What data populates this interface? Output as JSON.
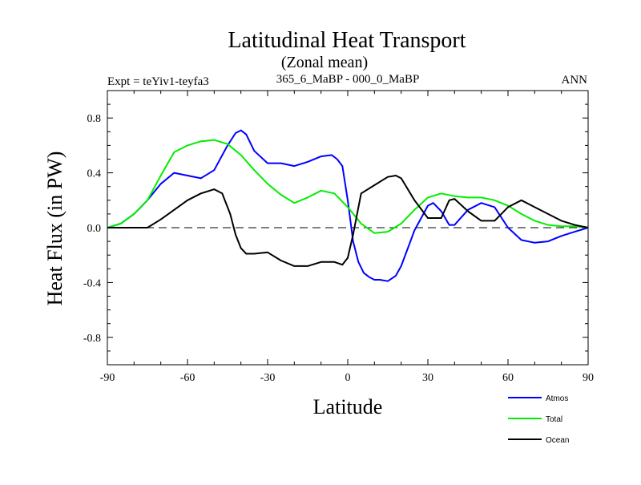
{
  "chart_data": {
    "type": "line",
    "title": "Latitudinal Heat Transport",
    "subtitle": "(Zonal mean)",
    "experiment": "Expt = teYiv1-teyfa3",
    "comparison": "365_6_MaBP - 000_0_MaBP",
    "season": "ANN",
    "xlabel": "Latitude",
    "ylabel": "Heat Flux (in PW)",
    "xlim": [
      -90,
      90
    ],
    "ylim": [
      -1.0,
      1.0
    ],
    "xticks": [
      -90,
      -60,
      -30,
      0,
      30,
      60,
      90
    ],
    "yticks": [
      -0.8,
      -0.4,
      0.0,
      0.4,
      0.8
    ],
    "ytick_labels": [
      "-0.8",
      "-0.4",
      "0.0",
      "0.4",
      "0.8"
    ],
    "zero_line": true,
    "series": [
      {
        "name": "Atmos",
        "color": "#0000ff",
        "x": [
          -90,
          -85,
          -80,
          -75,
          -70,
          -65,
          -60,
          -55,
          -50,
          -45,
          -42,
          -40,
          -38,
          -35,
          -30,
          -25,
          -20,
          -15,
          -10,
          -6,
          -4,
          -2,
          0,
          2,
          4,
          6,
          8,
          10,
          12,
          15,
          18,
          20,
          25,
          30,
          32,
          35,
          38,
          40,
          45,
          50,
          55,
          60,
          65,
          70,
          75,
          80,
          85,
          90
        ],
        "y": [
          0.0,
          0.03,
          0.1,
          0.2,
          0.32,
          0.4,
          0.38,
          0.36,
          0.42,
          0.6,
          0.69,
          0.71,
          0.68,
          0.56,
          0.47,
          0.47,
          0.45,
          0.48,
          0.52,
          0.53,
          0.5,
          0.45,
          0.2,
          -0.1,
          -0.25,
          -0.33,
          -0.36,
          -0.38,
          -0.38,
          -0.39,
          -0.35,
          -0.28,
          -0.02,
          0.16,
          0.18,
          0.12,
          0.02,
          0.02,
          0.13,
          0.18,
          0.15,
          0.0,
          -0.09,
          -0.11,
          -0.1,
          -0.06,
          -0.03,
          0.0
        ]
      },
      {
        "name": "Total",
        "color": "#00ee00",
        "x": [
          -90,
          -85,
          -80,
          -75,
          -70,
          -65,
          -60,
          -55,
          -50,
          -45,
          -40,
          -35,
          -30,
          -25,
          -20,
          -15,
          -10,
          -5,
          0,
          5,
          10,
          15,
          20,
          25,
          30,
          35,
          40,
          45,
          50,
          55,
          60,
          65,
          70,
          75,
          80,
          85,
          90
        ],
        "y": [
          0.0,
          0.03,
          0.1,
          0.2,
          0.38,
          0.55,
          0.6,
          0.63,
          0.64,
          0.61,
          0.53,
          0.42,
          0.32,
          0.24,
          0.18,
          0.22,
          0.27,
          0.25,
          0.15,
          0.03,
          -0.04,
          -0.03,
          0.03,
          0.13,
          0.22,
          0.25,
          0.23,
          0.22,
          0.22,
          0.2,
          0.16,
          0.1,
          0.05,
          0.02,
          0.01,
          0.01,
          0.0
        ]
      },
      {
        "name": "Ocean",
        "color": "#000000",
        "x": [
          -90,
          -85,
          -80,
          -75,
          -70,
          -65,
          -60,
          -55,
          -50,
          -47,
          -44,
          -42,
          -40,
          -38,
          -35,
          -30,
          -25,
          -20,
          -15,
          -10,
          -5,
          -2,
          0,
          2,
          5,
          10,
          15,
          18,
          20,
          25,
          30,
          35,
          38,
          40,
          45,
          50,
          55,
          60,
          65,
          70,
          75,
          80,
          85,
          90
        ],
        "y": [
          0.0,
          0.0,
          0.0,
          0.0,
          0.06,
          0.13,
          0.2,
          0.25,
          0.28,
          0.25,
          0.1,
          -0.05,
          -0.15,
          -0.19,
          -0.19,
          -0.18,
          -0.24,
          -0.28,
          -0.28,
          -0.25,
          -0.25,
          -0.27,
          -0.22,
          -0.05,
          0.25,
          0.31,
          0.37,
          0.38,
          0.36,
          0.2,
          0.07,
          0.07,
          0.2,
          0.21,
          0.12,
          0.05,
          0.05,
          0.15,
          0.2,
          0.15,
          0.1,
          0.05,
          0.02,
          0.0
        ]
      }
    ],
    "legend_position": "bottom-right"
  }
}
